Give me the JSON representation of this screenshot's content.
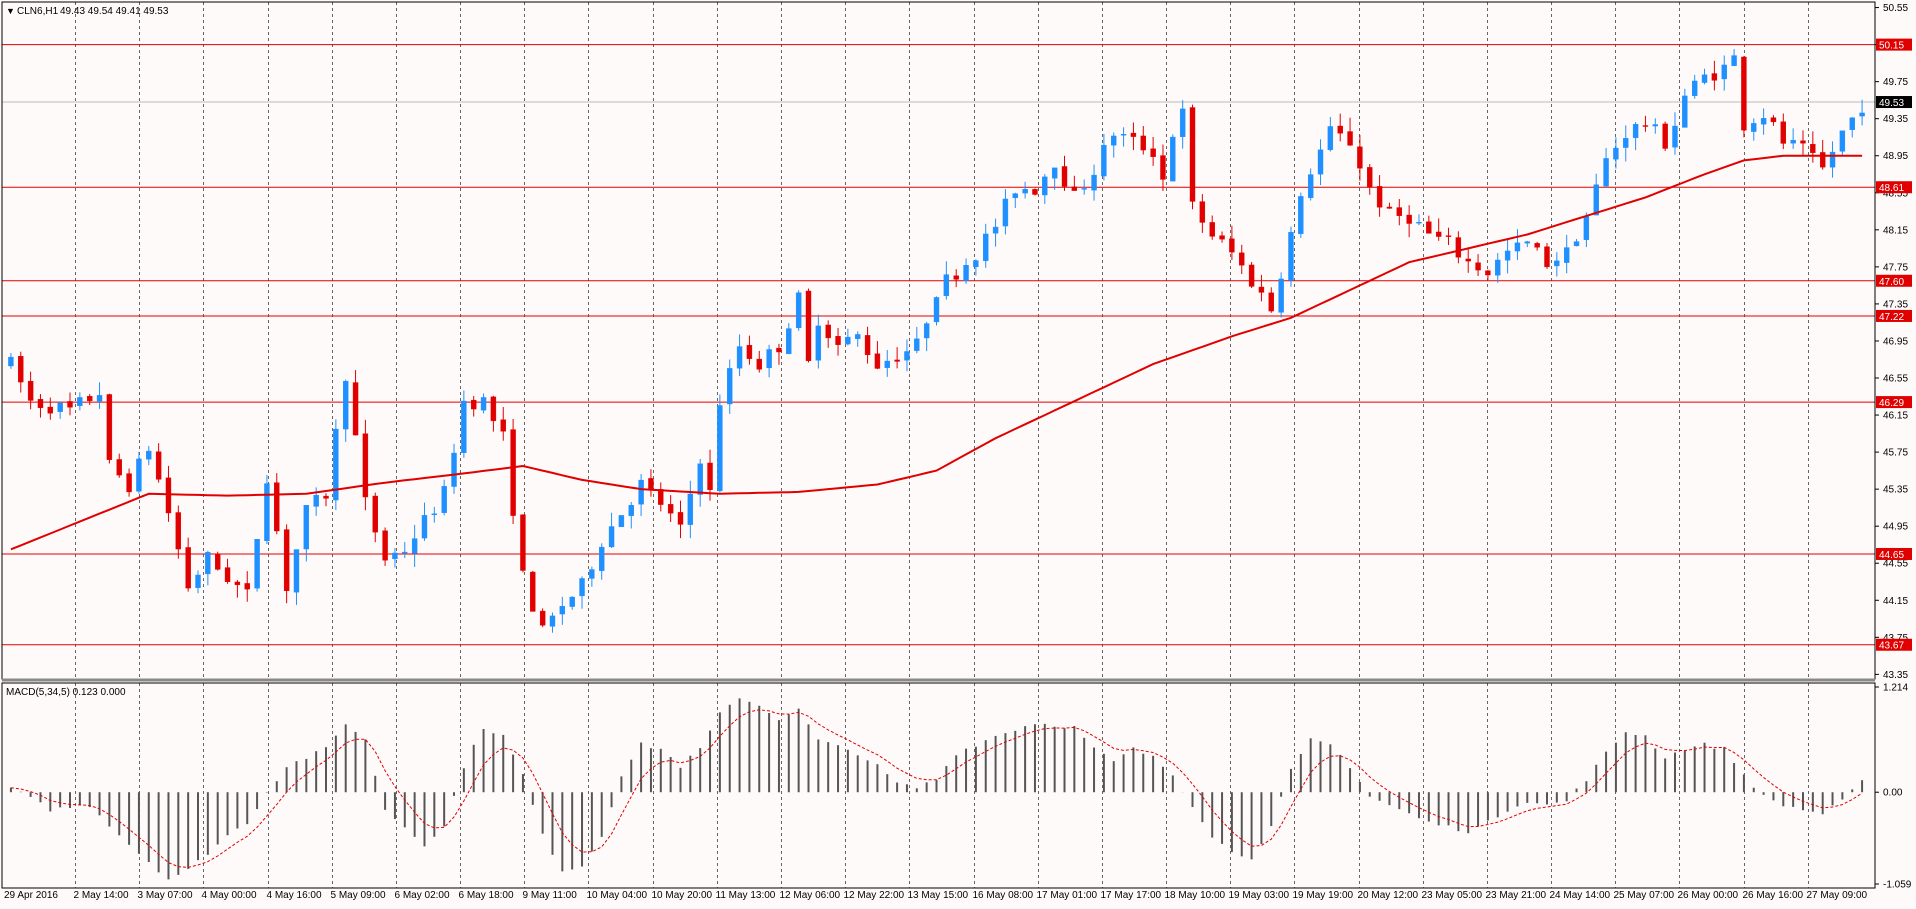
{
  "header": {
    "symbol_label": "CLN6,H1",
    "ohlc_text": "49.43 49.54 49.41 49.53",
    "marker_glyph": "▼"
  },
  "colors": {
    "background": "#fffafa",
    "grid": "#000000",
    "bull": "#1e90ff",
    "bear": "#e00000",
    "ma": "#e00000",
    "level": "#e00000",
    "histogram": "#555555",
    "signal": "#e00000",
    "current_price_line": "#bbbbbb",
    "current_price_tag": "#000000"
  },
  "chart_data": {
    "type": "candlestick",
    "price_axis": {
      "ylim": [
        43.3,
        50.61
      ],
      "ticks": [
        "50.55",
        "50.15",
        "49.75",
        "49.35",
        "48.95",
        "48.55",
        "48.15",
        "47.75",
        "47.35",
        "46.95",
        "46.55",
        "46.15",
        "45.75",
        "45.35",
        "44.95",
        "44.55",
        "44.15",
        "43.75",
        "43.35"
      ]
    },
    "x_labels": [
      "29 Apr 2016",
      "2 May 14:00",
      "3 May 07:00",
      "4 May 00:00",
      "4 May 16:00",
      "5 May 09:00",
      "6 May 02:00",
      "6 May 18:00",
      "9 May 11:00",
      "10 May 04:00",
      "10 May 20:00",
      "11 May 13:00",
      "12 May 06:00",
      "12 May 22:00",
      "13 May 15:00",
      "16 May 08:00",
      "17 May 01:00",
      "17 May 17:00",
      "18 May 10:00",
      "19 May 03:00",
      "19 May 19:00",
      "20 May 12:00",
      "23 May 05:00",
      "23 May 21:00",
      "24 May 14:00",
      "25 May 07:00",
      "26 May 00:00",
      "26 May 16:00",
      "27 May 09:00"
    ],
    "price_anchors": [
      [
        0,
        46.7
      ],
      [
        2,
        46.3
      ],
      [
        6,
        46.2
      ],
      [
        9,
        46.4
      ],
      [
        10,
        45.6
      ],
      [
        12,
        45.4
      ],
      [
        14,
        45.8
      ],
      [
        16,
        45.1
      ],
      [
        18,
        44.3
      ],
      [
        20,
        44.6
      ],
      [
        22,
        44.4
      ],
      [
        24,
        44.2
      ],
      [
        26,
        45.5
      ],
      [
        28,
        44.3
      ],
      [
        30,
        45.1
      ],
      [
        32,
        45.3
      ],
      [
        34,
        46.6
      ],
      [
        36,
        45.2
      ],
      [
        38,
        44.6
      ],
      [
        40,
        44.7
      ],
      [
        42,
        45.0
      ],
      [
        44,
        45.3
      ],
      [
        46,
        46.3
      ],
      [
        48,
        46.3
      ],
      [
        50,
        45.9
      ],
      [
        52,
        44.4
      ],
      [
        54,
        43.8
      ],
      [
        56,
        44.1
      ],
      [
        58,
        44.3
      ],
      [
        60,
        44.8
      ],
      [
        62,
        45.1
      ],
      [
        64,
        45.4
      ],
      [
        66,
        45.2
      ],
      [
        68,
        44.9
      ],
      [
        70,
        45.7
      ],
      [
        71,
        45.3
      ],
      [
        72,
        46.3
      ],
      [
        74,
        46.9
      ],
      [
        76,
        46.7
      ],
      [
        78,
        46.9
      ],
      [
        80,
        47.4
      ],
      [
        81,
        46.7
      ],
      [
        82,
        47.2
      ],
      [
        84,
        46.9
      ],
      [
        86,
        47.0
      ],
      [
        88,
        46.7
      ],
      [
        90,
        46.8
      ],
      [
        92,
        46.9
      ],
      [
        94,
        47.5
      ],
      [
        96,
        47.7
      ],
      [
        98,
        47.9
      ],
      [
        100,
        48.2
      ],
      [
        102,
        48.6
      ],
      [
        104,
        48.6
      ],
      [
        106,
        48.9
      ],
      [
        108,
        48.5
      ],
      [
        110,
        48.8
      ],
      [
        112,
        49.2
      ],
      [
        114,
        49.1
      ],
      [
        116,
        49.0
      ],
      [
        117,
        48.7
      ],
      [
        118,
        49.2
      ],
      [
        119,
        49.4
      ],
      [
        120,
        48.4
      ],
      [
        122,
        48.1
      ],
      [
        124,
        47.9
      ],
      [
        126,
        47.6
      ],
      [
        128,
        47.3
      ],
      [
        130,
        48.1
      ],
      [
        132,
        48.8
      ],
      [
        134,
        49.2
      ],
      [
        136,
        49.1
      ],
      [
        138,
        48.6
      ],
      [
        140,
        48.3
      ],
      [
        142,
        48.3
      ],
      [
        144,
        48.1
      ],
      [
        146,
        48.0
      ],
      [
        148,
        47.8
      ],
      [
        150,
        47.7
      ],
      [
        152,
        47.9
      ],
      [
        154,
        48.0
      ],
      [
        156,
        47.8
      ],
      [
        158,
        47.9
      ],
      [
        160,
        48.3
      ],
      [
        162,
        48.9
      ],
      [
        164,
        49.2
      ],
      [
        166,
        49.3
      ],
      [
        168,
        49.1
      ],
      [
        169,
        49.3
      ],
      [
        170,
        49.6
      ],
      [
        172,
        49.8
      ],
      [
        174,
        49.9
      ],
      [
        175,
        50.0
      ],
      [
        176,
        49.3
      ],
      [
        178,
        49.4
      ],
      [
        180,
        49.1
      ],
      [
        182,
        49.0
      ],
      [
        184,
        48.8
      ],
      [
        186,
        49.2
      ],
      [
        188,
        49.5
      ]
    ],
    "ma_anchors": [
      [
        0,
        44.7
      ],
      [
        14,
        45.3
      ],
      [
        22,
        45.28
      ],
      [
        30,
        45.3
      ],
      [
        38,
        45.42
      ],
      [
        46,
        45.52
      ],
      [
        52,
        45.6
      ],
      [
        58,
        45.45
      ],
      [
        64,
        45.35
      ],
      [
        72,
        45.3
      ],
      [
        80,
        45.32
      ],
      [
        88,
        45.4
      ],
      [
        94,
        45.55
      ],
      [
        100,
        45.9
      ],
      [
        108,
        46.3
      ],
      [
        116,
        46.7
      ],
      [
        124,
        47.0
      ],
      [
        130,
        47.2
      ],
      [
        136,
        47.5
      ],
      [
        142,
        47.8
      ],
      [
        148,
        47.95
      ],
      [
        154,
        48.1
      ],
      [
        160,
        48.3
      ],
      [
        166,
        48.5
      ],
      [
        172,
        48.75
      ],
      [
        176,
        48.9
      ],
      [
        180,
        48.95
      ],
      [
        188,
        48.95
      ]
    ],
    "last_price": "49.53",
    "levels": [
      {
        "value": 50.15,
        "label": "50.15"
      },
      {
        "value": 48.61,
        "label": "48.61"
      },
      {
        "value": 47.6,
        "label": "47.60"
      },
      {
        "value": 47.22,
        "label": "47.22"
      },
      {
        "value": 46.29,
        "label": "46.29"
      },
      {
        "value": 44.65,
        "label": "44.65"
      },
      {
        "value": 43.67,
        "label": "43.67"
      }
    ],
    "indicator": {
      "title": "MACD(5,34,5) 0.123 0.000",
      "ylim": [
        -1.059,
        1.214
      ],
      "tick_labels": [
        "1.214",
        "0.00",
        "-1.059"
      ],
      "hist_anchors": [
        [
          0,
          0.05
        ],
        [
          4,
          -0.2
        ],
        [
          8,
          -0.15
        ],
        [
          12,
          -0.6
        ],
        [
          16,
          -1.0
        ],
        [
          18,
          -0.9
        ],
        [
          20,
          -0.7
        ],
        [
          22,
          -0.5
        ],
        [
          24,
          -0.35
        ],
        [
          26,
          0.0
        ],
        [
          28,
          0.3
        ],
        [
          32,
          0.5
        ],
        [
          34,
          0.8
        ],
        [
          36,
          0.6
        ],
        [
          38,
          -0.2
        ],
        [
          40,
          -0.4
        ],
        [
          42,
          -0.6
        ],
        [
          44,
          -0.4
        ],
        [
          46,
          0.3
        ],
        [
          48,
          0.75
        ],
        [
          50,
          0.65
        ],
        [
          52,
          0.2
        ],
        [
          54,
          -0.5
        ],
        [
          56,
          -0.9
        ],
        [
          58,
          -0.85
        ],
        [
          60,
          -0.5
        ],
        [
          62,
          0.2
        ],
        [
          64,
          0.55
        ],
        [
          66,
          0.5
        ],
        [
          68,
          0.3
        ],
        [
          70,
          0.5
        ],
        [
          72,
          0.9
        ],
        [
          74,
          1.1
        ],
        [
          76,
          1.0
        ],
        [
          78,
          0.85
        ],
        [
          80,
          0.95
        ],
        [
          82,
          0.6
        ],
        [
          86,
          0.45
        ],
        [
          88,
          0.3
        ],
        [
          90,
          0.1
        ],
        [
          92,
          0.05
        ],
        [
          94,
          0.15
        ],
        [
          96,
          0.45
        ],
        [
          100,
          0.65
        ],
        [
          104,
          0.8
        ],
        [
          108,
          0.75
        ],
        [
          110,
          0.5
        ],
        [
          112,
          0.35
        ],
        [
          114,
          0.5
        ],
        [
          116,
          0.4
        ],
        [
          118,
          0.2
        ],
        [
          120,
          -0.15
        ],
        [
          122,
          -0.5
        ],
        [
          124,
          -0.7
        ],
        [
          126,
          -0.75
        ],
        [
          128,
          -0.4
        ],
        [
          130,
          0.25
        ],
        [
          132,
          0.6
        ],
        [
          134,
          0.55
        ],
        [
          136,
          0.3
        ],
        [
          138,
          -0.05
        ],
        [
          140,
          -0.15
        ],
        [
          142,
          -0.25
        ],
        [
          144,
          -0.35
        ],
        [
          146,
          -0.4
        ],
        [
          148,
          -0.45
        ],
        [
          150,
          -0.35
        ],
        [
          152,
          -0.2
        ],
        [
          154,
          -0.1
        ],
        [
          156,
          -0.15
        ],
        [
          158,
          -0.1
        ],
        [
          160,
          0.15
        ],
        [
          162,
          0.45
        ],
        [
          164,
          0.7
        ],
        [
          166,
          0.65
        ],
        [
          168,
          0.4
        ],
        [
          170,
          0.5
        ],
        [
          172,
          0.55
        ],
        [
          174,
          0.5
        ],
        [
          176,
          0.2
        ],
        [
          178,
          -0.05
        ],
        [
          180,
          -0.15
        ],
        [
          182,
          -0.2
        ],
        [
          184,
          -0.25
        ],
        [
          186,
          -0.1
        ],
        [
          188,
          0.12
        ]
      ]
    }
  }
}
